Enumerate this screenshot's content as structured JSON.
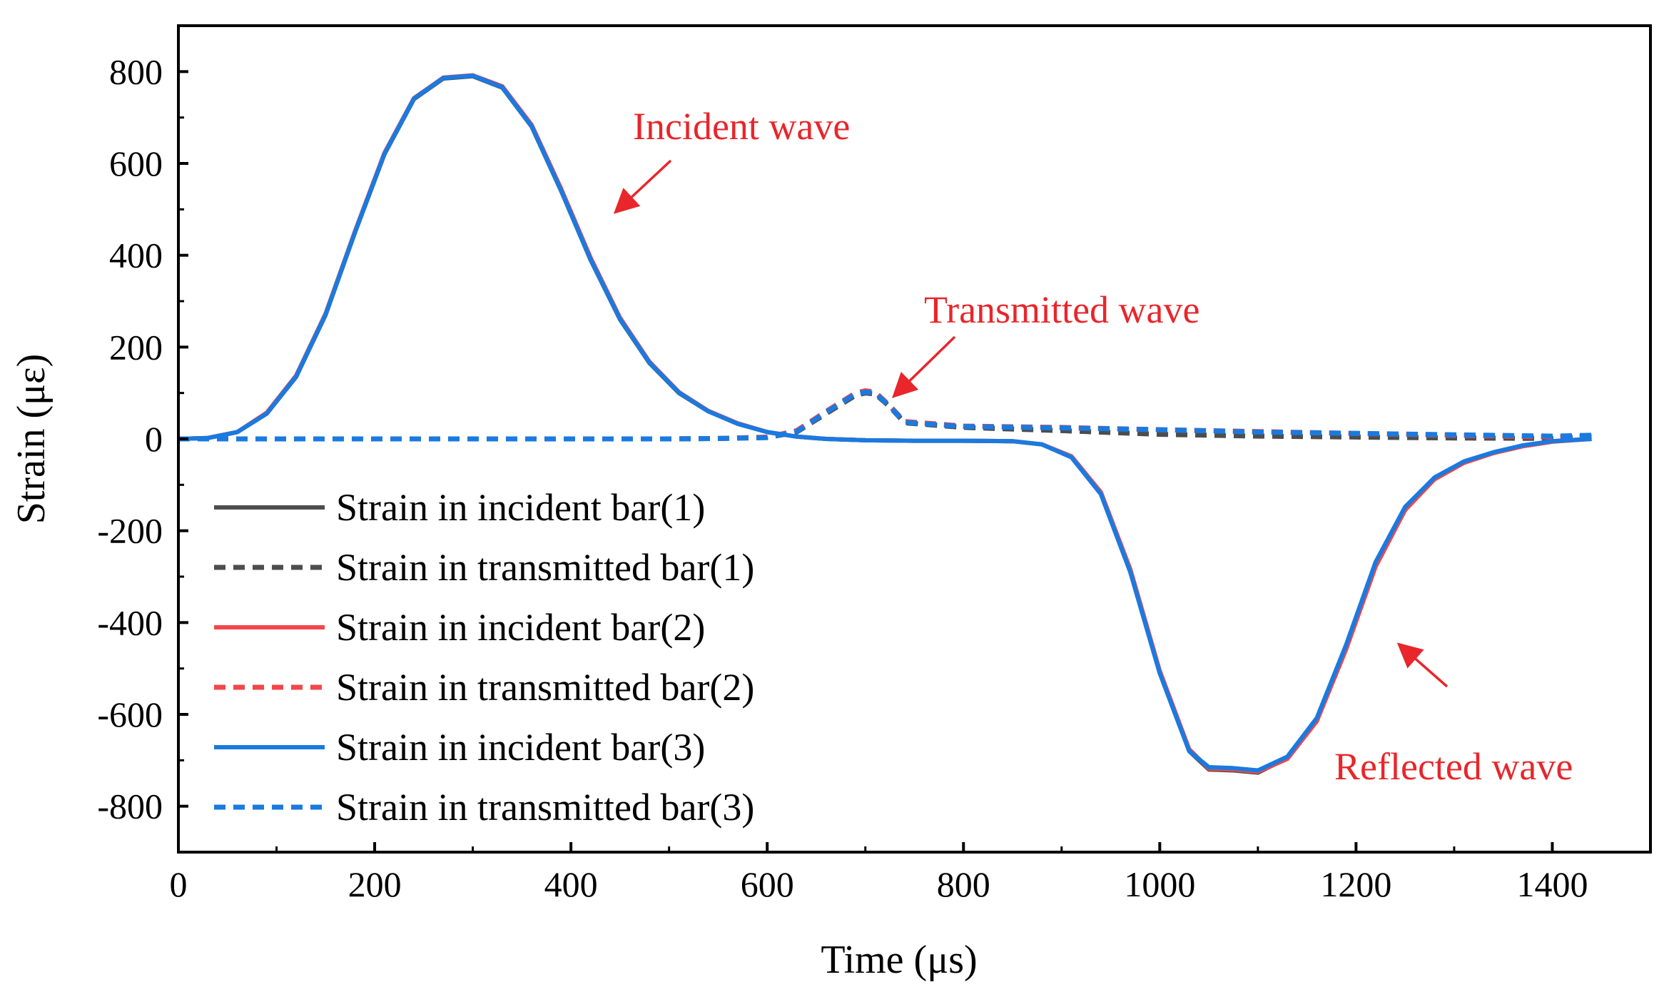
{
  "chart_data": {
    "type": "line",
    "xlabel": "Time (μs)",
    "ylabel": "Strain (με)",
    "xlim": [
      0,
      1500
    ],
    "ylim": [
      -900,
      900
    ],
    "x_ticks": [
      0,
      200,
      400,
      600,
      800,
      1000,
      1200,
      1400
    ],
    "y_ticks": [
      800,
      600,
      400,
      200,
      0,
      -200,
      -400,
      -600,
      -800
    ],
    "x_tick_labels": [
      "0",
      "200",
      "400",
      "600",
      "800",
      "1000",
      "1200",
      "1400"
    ],
    "y_tick_labels": [
      "800",
      "600",
      "400",
      "200",
      "0",
      "-200",
      "-400",
      "-600",
      "-800"
    ],
    "grid": false,
    "legend_position": "lower-left",
    "series": [
      {
        "name": "Strain in incident bar(1)",
        "color": "#4d4d4d",
        "dash": "solid",
        "x": [
          0,
          30,
          60,
          90,
          120,
          150,
          180,
          210,
          240,
          270,
          300,
          330,
          360,
          390,
          420,
          450,
          480,
          510,
          540,
          570,
          600,
          630,
          660,
          700,
          750,
          800,
          850,
          880,
          910,
          940,
          970,
          1000,
          1030,
          1050,
          1075,
          1100,
          1130,
          1160,
          1190,
          1220,
          1250,
          1280,
          1310,
          1340,
          1370,
          1400,
          1440
        ],
        "y": [
          0,
          2,
          15,
          55,
          135,
          270,
          450,
          620,
          740,
          785,
          790,
          765,
          680,
          540,
          390,
          260,
          165,
          100,
          60,
          33,
          15,
          5,
          0,
          -3,
          -4,
          -4,
          -5,
          -12,
          -40,
          -120,
          -290,
          -510,
          -680,
          -720,
          -722,
          -727,
          -695,
          -610,
          -450,
          -270,
          -150,
          -85,
          -50,
          -30,
          -15,
          -5,
          0
        ]
      },
      {
        "name": "Strain in transmitted bar(1)",
        "color": "#4d4d4d",
        "dash": "dashed",
        "x": [
          0,
          100,
          200,
          300,
          400,
          500,
          550,
          600,
          630,
          660,
          690,
          700,
          710,
          725,
          740,
          800,
          900,
          1000,
          1100,
          1200,
          1300,
          1400,
          1440
        ],
        "y": [
          0,
          0,
          0,
          0,
          0,
          0,
          1,
          3,
          15,
          55,
          95,
          100,
          98,
          70,
          35,
          25,
          18,
          10,
          6,
          4,
          2,
          1,
          5
        ]
      },
      {
        "name": "Strain in incident bar(2)",
        "color": "#f2474a",
        "dash": "solid",
        "x": [
          0,
          30,
          60,
          90,
          120,
          150,
          180,
          210,
          240,
          270,
          300,
          330,
          360,
          390,
          420,
          450,
          480,
          510,
          540,
          570,
          600,
          630,
          660,
          700,
          750,
          800,
          850,
          880,
          910,
          940,
          970,
          1000,
          1030,
          1050,
          1075,
          1100,
          1130,
          1160,
          1190,
          1220,
          1250,
          1280,
          1310,
          1340,
          1370,
          1400,
          1440
        ],
        "y": [
          0,
          2,
          15,
          57,
          138,
          273,
          453,
          623,
          742,
          787,
          792,
          768,
          684,
          545,
          395,
          264,
          168,
          102,
          61,
          34,
          15,
          5,
          0,
          -3,
          -4,
          -4,
          -5,
          -12,
          -38,
          -116,
          -284,
          -505,
          -676,
          -718,
          -720,
          -725,
          -697,
          -615,
          -458,
          -278,
          -155,
          -88,
          -52,
          -31,
          -16,
          -6,
          0
        ]
      },
      {
        "name": "Strain in transmitted bar(2)",
        "color": "#f2474a",
        "dash": "dashed",
        "x": [
          0,
          100,
          200,
          300,
          400,
          500,
          550,
          600,
          630,
          660,
          690,
          700,
          710,
          725,
          740,
          800,
          900,
          1000,
          1100,
          1200,
          1300,
          1400,
          1440
        ],
        "y": [
          0,
          0,
          0,
          0,
          0,
          0,
          1,
          4,
          18,
          60,
          100,
          105,
          102,
          72,
          38,
          28,
          25,
          20,
          16,
          12,
          8,
          4,
          6
        ]
      },
      {
        "name": "Strain in incident bar(3)",
        "color": "#1a7ae0",
        "dash": "solid",
        "x": [
          0,
          30,
          60,
          90,
          120,
          150,
          180,
          210,
          240,
          270,
          300,
          330,
          360,
          390,
          420,
          450,
          480,
          510,
          540,
          570,
          600,
          630,
          660,
          700,
          750,
          800,
          850,
          880,
          910,
          940,
          970,
          1000,
          1030,
          1050,
          1075,
          1100,
          1130,
          1160,
          1190,
          1220,
          1250,
          1280,
          1310,
          1340,
          1370,
          1400,
          1440
        ],
        "y": [
          0,
          2,
          15,
          55,
          136,
          271,
          451,
          621,
          741,
          786,
          791,
          766,
          681,
          541,
          391,
          261,
          166,
          101,
          60,
          33,
          15,
          5,
          0,
          -3,
          -4,
          -4,
          -5,
          -12,
          -40,
          -120,
          -290,
          -510,
          -680,
          -715,
          -717,
          -722,
          -692,
          -608,
          -448,
          -268,
          -148,
          -84,
          -49,
          -29,
          -14,
          -5,
          0
        ]
      },
      {
        "name": "Strain in transmitted bar(3)",
        "color": "#1a7ae0",
        "dash": "dashed",
        "x": [
          0,
          100,
          200,
          300,
          400,
          500,
          550,
          600,
          630,
          660,
          690,
          700,
          710,
          725,
          740,
          800,
          900,
          1000,
          1100,
          1200,
          1300,
          1400,
          1440
        ],
        "y": [
          0,
          0,
          0,
          0,
          0,
          0,
          1,
          3,
          16,
          58,
          98,
          102,
          100,
          71,
          36,
          27,
          24,
          20,
          15,
          12,
          9,
          6,
          8
        ]
      }
    ],
    "annotations": [
      {
        "text": "Incident wave",
        "color": "#e8262b"
      },
      {
        "text": "Transmitted wave",
        "color": "#e8262b"
      },
      {
        "text": "Reflected wave",
        "color": "#e8262b"
      }
    ]
  }
}
